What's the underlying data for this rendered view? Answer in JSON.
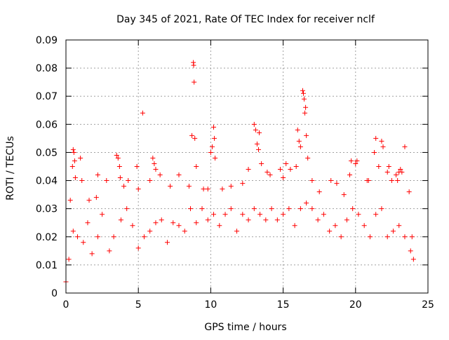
{
  "chart_data": {
    "type": "scatter",
    "title": "Day 345 of 2021, Rate Of TEC Index for receiver nclf",
    "xlabel": "GPS time / hours",
    "ylabel": "ROTI / TECUs",
    "xlim": [
      0,
      25
    ],
    "ylim": [
      0,
      0.09
    ],
    "xticks": [
      "0",
      "5",
      "10",
      "15",
      "20",
      "25"
    ],
    "yticks": [
      "0",
      "0.01",
      "0.02",
      "0.03",
      "0.04",
      "0.05",
      "0.06",
      "0.07",
      "0.08",
      "0.09"
    ],
    "grid": true,
    "marker": "+",
    "marker_color": "#ff0000",
    "series": [
      {
        "x": [
          0.3,
          0.45,
          0.5,
          0.55,
          0.6,
          0.65,
          1.0,
          1.1,
          1.6,
          2.1,
          2.2,
          2.8,
          3.5,
          3.6,
          3.7,
          3.75,
          4.0,
          4.3,
          4.9,
          5.0,
          5.3,
          5.8,
          6.0,
          6.1,
          6.2,
          6.5,
          7.2,
          7.8,
          8.5,
          8.7,
          8.8,
          8.82,
          8.85,
          8.9,
          9.0,
          9.5,
          9.8,
          10.0,
          10.1,
          10.2,
          10.25,
          10.3,
          10.8,
          11.4,
          12.2,
          12.6,
          13.0,
          13.1,
          13.2,
          13.3,
          13.35,
          13.5,
          13.9,
          14.1,
          14.8,
          15.0,
          15.2,
          15.5,
          15.9,
          16.0,
          16.1,
          16.2,
          16.35,
          16.4,
          16.45,
          16.5,
          16.55,
          16.6,
          16.7,
          17.0,
          17.5,
          18.3,
          18.7,
          19.2,
          19.6,
          19.7,
          20.0,
          20.1,
          20.8,
          20.9,
          21.3,
          21.4,
          21.6,
          21.8,
          21.9,
          22.2,
          22.3,
          22.5,
          22.8,
          22.9,
          23.0,
          23.1,
          23.2,
          23.4,
          23.7,
          23.9
        ],
        "y": [
          0.033,
          0.045,
          0.051,
          0.05,
          0.047,
          0.041,
          0.048,
          0.04,
          0.033,
          0.034,
          0.042,
          0.04,
          0.049,
          0.048,
          0.045,
          0.041,
          0.038,
          0.04,
          0.045,
          0.037,
          0.064,
          0.04,
          0.048,
          0.046,
          0.044,
          0.042,
          0.038,
          0.042,
          0.038,
          0.056,
          0.082,
          0.081,
          0.075,
          0.055,
          0.045,
          0.037,
          0.037,
          0.05,
          0.052,
          0.059,
          0.055,
          0.048,
          0.037,
          0.038,
          0.039,
          0.044,
          0.06,
          0.058,
          0.053,
          0.051,
          0.057,
          0.046,
          0.043,
          0.042,
          0.044,
          0.041,
          0.046,
          0.044,
          0.045,
          0.058,
          0.054,
          0.052,
          0.072,
          0.071,
          0.069,
          0.064,
          0.066,
          0.056,
          0.048,
          0.04,
          0.036,
          0.04,
          0.039,
          0.035,
          0.042,
          0.047,
          0.046,
          0.047,
          0.04,
          0.04,
          0.05,
          0.055,
          0.045,
          0.054,
          0.052,
          0.043,
          0.045,
          0.04,
          0.042,
          0.04,
          0.043,
          0.044,
          0.043,
          0.052,
          0.036,
          0.02
        ]
      },
      {
        "x": [
          0.0,
          0.2,
          0.5,
          0.8,
          1.2,
          1.5,
          1.8,
          2.2,
          2.5,
          3.0,
          3.3,
          3.8,
          4.2,
          4.6,
          5.0,
          5.4,
          5.8,
          6.2,
          6.6,
          7.0,
          7.4,
          7.8,
          8.2,
          8.6,
          9.0,
          9.4,
          9.8,
          10.2,
          10.6,
          11.0,
          11.4,
          11.8,
          12.2,
          12.6,
          13.0,
          13.4,
          13.8,
          14.2,
          14.6,
          15.0,
          15.4,
          15.8,
          16.2,
          16.6,
          17.0,
          17.4,
          17.8,
          18.2,
          18.6,
          19.0,
          19.4,
          19.8,
          20.2,
          20.6,
          21.0,
          21.4,
          21.8,
          22.2,
          22.6,
          23.0,
          23.4,
          23.8,
          24.0
        ],
        "y": [
          0.004,
          0.012,
          0.022,
          0.02,
          0.018,
          0.025,
          0.014,
          0.02,
          0.028,
          0.015,
          0.02,
          0.026,
          0.03,
          0.024,
          0.016,
          0.02,
          0.022,
          0.025,
          0.026,
          0.018,
          0.025,
          0.024,
          0.022,
          0.03,
          0.025,
          0.03,
          0.026,
          0.028,
          0.024,
          0.028,
          0.03,
          0.022,
          0.028,
          0.026,
          0.03,
          0.028,
          0.026,
          0.03,
          0.026,
          0.028,
          0.03,
          0.024,
          0.03,
          0.032,
          0.03,
          0.026,
          0.028,
          0.022,
          0.024,
          0.02,
          0.026,
          0.03,
          0.028,
          0.024,
          0.02,
          0.028,
          0.03,
          0.02,
          0.022,
          0.024,
          0.02,
          0.015,
          0.012
        ]
      }
    ]
  }
}
